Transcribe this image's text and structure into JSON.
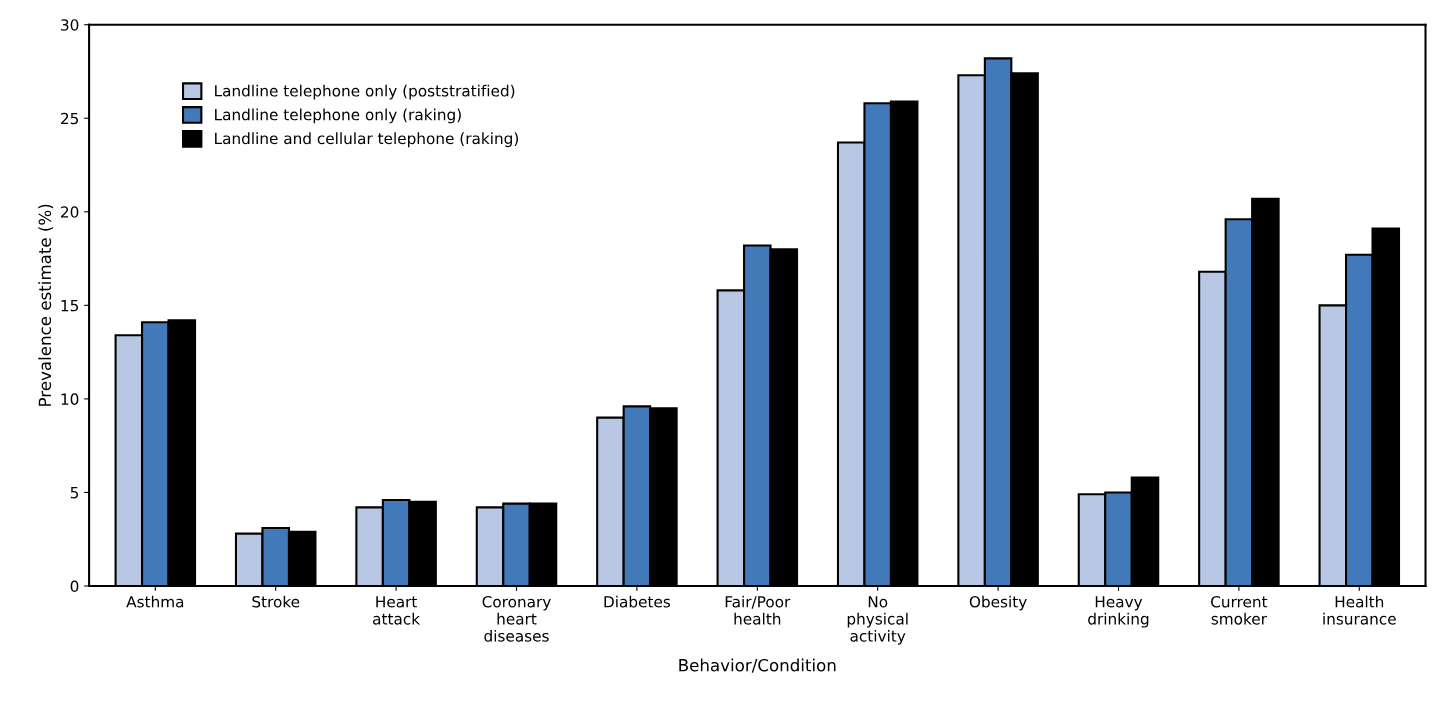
{
  "chart_data": {
    "type": "bar",
    "xlabel": "Behavior/Condition",
    "ylabel": "Prevalence estimate (%)",
    "categories": [
      "Asthma",
      "Stroke",
      "Heart\nattack",
      "Coronary\nheart\ndiseases",
      "Diabetes",
      "Fair/Poor\nhealth",
      "No\nphysical\nactivity",
      "Obesity",
      "Heavy\ndrinking",
      "Current\nsmoker",
      "Health\ninsurance"
    ],
    "series": [
      {
        "name": "Landline telephone only (poststratified)",
        "color": "#b8c8e4",
        "values": [
          13.4,
          2.8,
          4.2,
          4.2,
          9.0,
          15.8,
          23.7,
          27.3,
          4.9,
          16.8,
          15.0
        ]
      },
      {
        "name": "Landline telephone only (raking)",
        "color": "#4279b9",
        "values": [
          14.1,
          3.1,
          4.6,
          4.4,
          9.6,
          18.2,
          25.8,
          28.2,
          5.0,
          19.6,
          17.7
        ]
      },
      {
        "name": "Landline and cellular telephone (raking)",
        "color": "#000000",
        "values": [
          14.2,
          2.9,
          4.5,
          4.4,
          9.5,
          18.0,
          25.9,
          27.4,
          5.8,
          20.7,
          19.1
        ]
      }
    ],
    "ylim": [
      0,
      30
    ],
    "yticks": [
      0,
      5,
      10,
      15,
      20,
      25,
      30
    ],
    "grid": false,
    "legend": "top left"
  }
}
